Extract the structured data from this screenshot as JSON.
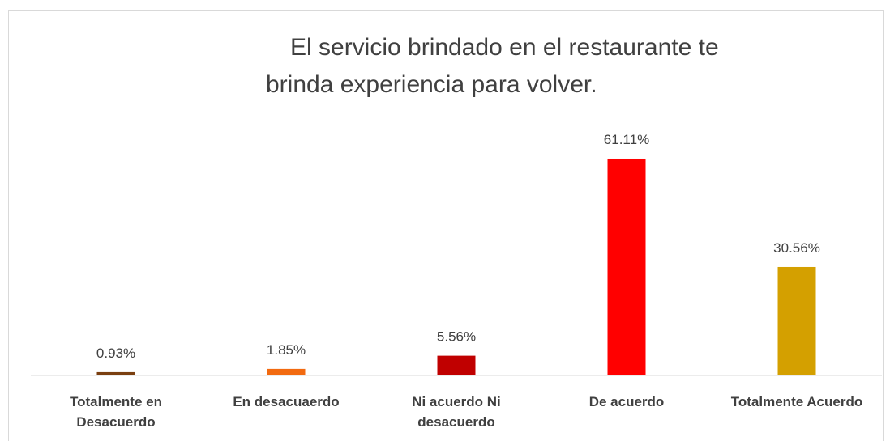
{
  "chart_data": {
    "type": "bar",
    "title": [
      "El servicio brindado en el restaurante te",
      "brinda experiencia para volver."
    ],
    "categories": [
      "Totalmente en Desacuerdo",
      "En desacuaerdo",
      "Ni acuerdo Ni desacuerdo",
      "De acuerdo",
      "Totalmente Acuerdo"
    ],
    "values": [
      0.93,
      1.85,
      5.56,
      61.11,
      30.56
    ],
    "value_labels": [
      "0.93%",
      "1.85%",
      "5.56%",
      "61.11%",
      "30.56%"
    ],
    "colors": [
      "#7a3f10",
      "#f26a10",
      "#c00000",
      "#ff0000",
      "#d4a000"
    ],
    "ylim": [
      0,
      70
    ]
  }
}
